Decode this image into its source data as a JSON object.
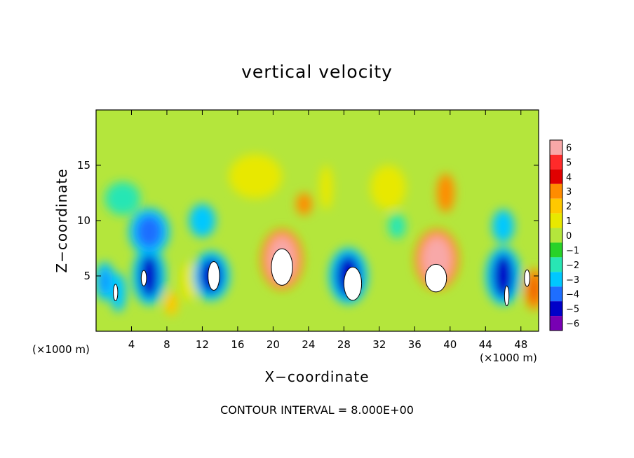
{
  "chart_data": {
    "type": "heatmap",
    "title": "vertical velocity",
    "xlabel": "X−coordinate",
    "ylabel": "Z−coordinate",
    "x_unit_left": "(×1000 m)",
    "x_unit_right": "(×1000 m)",
    "x_ticks": [
      "4",
      "8",
      "12",
      "16",
      "20",
      "24",
      "28",
      "32",
      "36",
      "40",
      "44",
      "48"
    ],
    "y_ticks": [
      "5",
      "10",
      "15"
    ],
    "xlim": [
      0,
      50
    ],
    "ylim": [
      0,
      20
    ],
    "colorbar": {
      "labels": [
        "6",
        "5",
        "4",
        "3",
        "2",
        "1",
        "0",
        "−1",
        "−2",
        "−3",
        "−4",
        "−5",
        "−6"
      ],
      "colors": [
        "#f8a8a8",
        "#ff2a2a",
        "#e00000",
        "#ff8c00",
        "#ffc800",
        "#e8e800",
        "#b4e63c",
        "#28d228",
        "#28e6b4",
        "#00c8ff",
        "#1e6eff",
        "#0000c8",
        "#7800b4"
      ]
    },
    "cells": [
      {
        "x": 1,
        "z": 4.5,
        "w": 0.7,
        "h": 2.2,
        "v": -4
      },
      {
        "x": 2.5,
        "z": 3.5,
        "w": 1.8,
        "h": 3.5,
        "v": -3
      },
      {
        "x": 6,
        "z": 5,
        "w": 2.2,
        "h": 4,
        "v": -5
      },
      {
        "x": 6,
        "z": 9,
        "w": 3,
        "h": 3,
        "v": -4
      },
      {
        "x": 3,
        "z": 12,
        "w": 4,
        "h": 3,
        "v": -2
      },
      {
        "x": 8.5,
        "z": 2.5,
        "w": 1.5,
        "h": 2.2,
        "v": 2
      },
      {
        "x": 10.5,
        "z": 4.5,
        "w": 1.8,
        "h": 3.5,
        "v": 1
      },
      {
        "x": 13,
        "z": 5,
        "w": 2.6,
        "h": 3.2,
        "v": -5
      },
      {
        "x": 12,
        "z": 10,
        "w": 3,
        "h": 3,
        "v": -3
      },
      {
        "x": 18,
        "z": 14,
        "w": 6,
        "h": 4,
        "v": 1
      },
      {
        "x": 21,
        "z": 6.5,
        "w": 3.2,
        "h": 4.2,
        "v": 6
      },
      {
        "x": 23.5,
        "z": 11.5,
        "w": 1.8,
        "h": 2,
        "v": 3
      },
      {
        "x": 26,
        "z": 13,
        "w": 1.5,
        "h": 4,
        "v": 1
      },
      {
        "x": 28.5,
        "z": 5,
        "w": 2.8,
        "h": 3.8,
        "v": -5
      },
      {
        "x": 34,
        "z": 9.5,
        "w": 2,
        "h": 2.2,
        "v": -2
      },
      {
        "x": 33,
        "z": 13,
        "w": 4,
        "h": 4,
        "v": 1
      },
      {
        "x": 38.5,
        "z": 6.5,
        "w": 3.4,
        "h": 4.2,
        "v": 6
      },
      {
        "x": 39.5,
        "z": 12.5,
        "w": 2,
        "h": 3.5,
        "v": 3
      },
      {
        "x": 46,
        "z": 5,
        "w": 2.4,
        "h": 4,
        "v": -5
      },
      {
        "x": 46,
        "z": 9.5,
        "w": 2.5,
        "h": 3,
        "v": -3
      },
      {
        "x": 49.5,
        "z": 3.8,
        "w": 0.6,
        "h": 2.5,
        "v": 4
      }
    ],
    "white_regions": [
      {
        "x": 5.4,
        "z": 4.8,
        "w": 0.6,
        "h": 1.4
      },
      {
        "x": 2.2,
        "z": 3.5,
        "w": 0.5,
        "h": 1.5
      },
      {
        "x": 13.3,
        "z": 5,
        "w": 1.3,
        "h": 2.6
      },
      {
        "x": 21,
        "z": 5.8,
        "w": 2.4,
        "h": 3.3
      },
      {
        "x": 29,
        "z": 4.3,
        "w": 2,
        "h": 3
      },
      {
        "x": 38.4,
        "z": 4.8,
        "w": 2.4,
        "h": 2.5
      },
      {
        "x": 46.4,
        "z": 3.2,
        "w": 0.5,
        "h": 1.8
      },
      {
        "x": 48.7,
        "z": 4.8,
        "w": 0.6,
        "h": 1.5
      }
    ]
  },
  "contour_note": "CONTOUR INTERVAL = 8.000E+00"
}
